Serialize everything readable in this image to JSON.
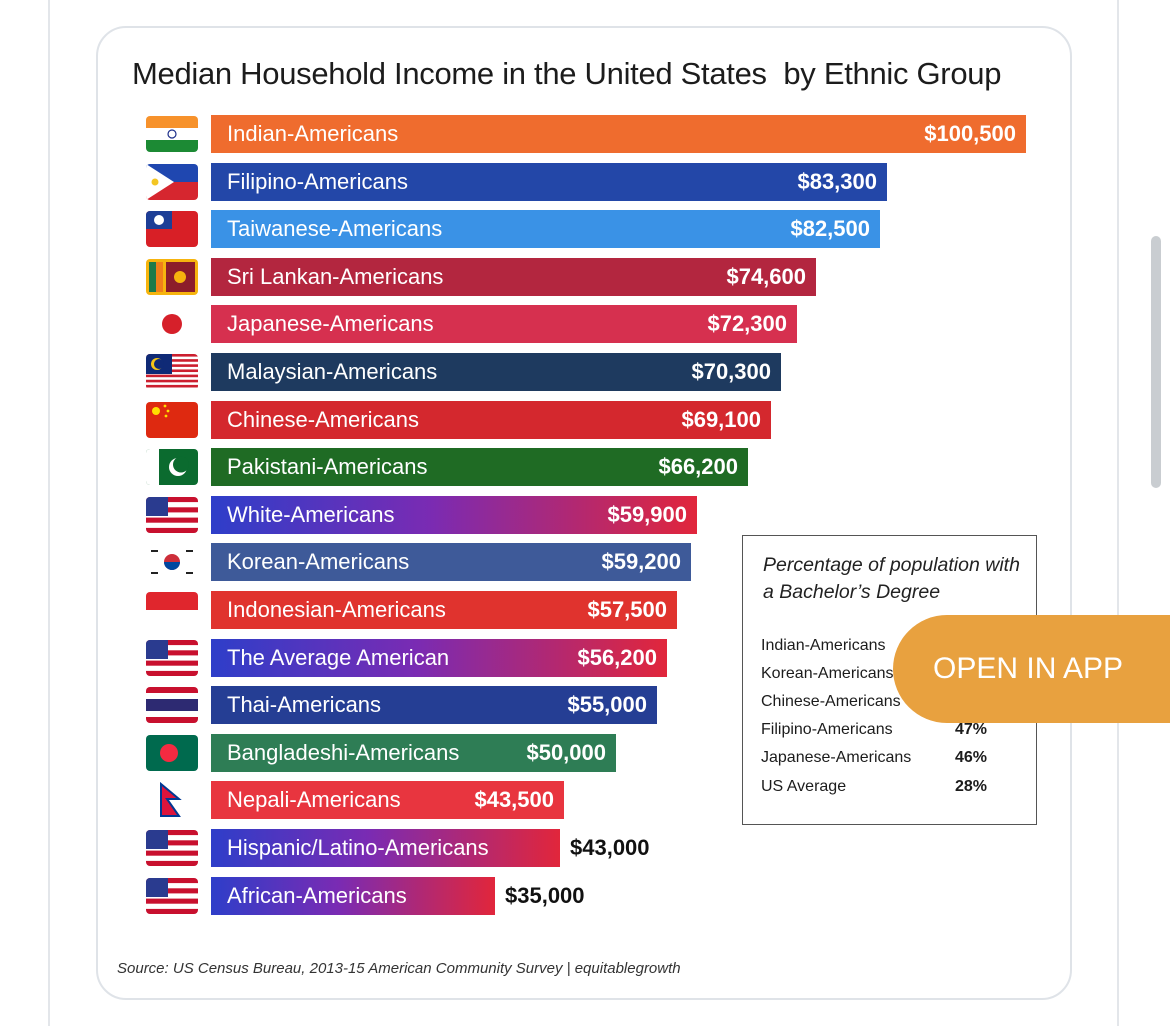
{
  "chart_data": {
    "type": "bar",
    "orientation": "horizontal",
    "title": "Median Household Income in the United States  by Ethnic Group",
    "categories": [
      "Indian-Americans",
      "Filipino-Americans",
      "Taiwanese-Americans",
      "Sri Lankan-Americans",
      "Japanese-Americans",
      "Malaysian-Americans",
      "Chinese-Americans",
      "Pakistani-Americans",
      "White-Americans",
      "Korean-Americans",
      "Indonesian-Americans",
      "The Average American",
      "Thai-Americans",
      "Bangladeshi-Americans",
      "Nepali-Americans",
      "Hispanic/Latino-Americans",
      "African-Americans"
    ],
    "values": [
      100500,
      83300,
      82500,
      74600,
      72300,
      70300,
      69100,
      66200,
      59900,
      59200,
      57500,
      56200,
      55000,
      50000,
      43500,
      43000,
      35000
    ],
    "value_labels": [
      "$100,500",
      "$83,300",
      "$82,500",
      "$74,600",
      "$72,300",
      "$70,300",
      "$69,100",
      "$66,200",
      "$59,900",
      "$59,200",
      "$57,500",
      "$56,200",
      "$55,000",
      "$50,000",
      "$43,500",
      "$43,000",
      "$35,000"
    ],
    "bar_colors": [
      "#ef6c2e",
      "#2347a8",
      "#3a92e6",
      "#b3263f",
      "#d6304f",
      "#1e3a5f",
      "#d4282e",
      "#1f6b24",
      "gradient-blue-red",
      "#3e5a99",
      "#e0332e",
      "gradient-blue-red",
      "#253e94",
      "#2e7d55",
      "#e8353f",
      "gradient-blue-red",
      "gradient-blue-red"
    ],
    "flag_icons": [
      "india-flag-icon",
      "philippines-flag-icon",
      "taiwan-flag-icon",
      "sri-lanka-flag-icon",
      "japan-flag-icon",
      "malaysia-flag-icon",
      "china-flag-icon",
      "pakistan-flag-icon",
      "usa-flag-icon",
      "south-korea-flag-icon",
      "indonesia-flag-icon",
      "usa-flag-icon",
      "thailand-flag-icon",
      "bangladesh-flag-icon",
      "nepal-flag-icon",
      "usa-flag-icon",
      "usa-flag-icon"
    ]
  },
  "inset": {
    "title": "Percentage of population with a Bachelor’s Degree",
    "rows": [
      {
        "name": "Indian-Americans",
        "pct": ""
      },
      {
        "name": "Korean-Americans",
        "pct": ""
      },
      {
        "name": "Chinese-Americans",
        "pct": ""
      },
      {
        "name": "Filipino-Americans",
        "pct": "47%"
      },
      {
        "name": "Japanese-Americans",
        "pct": "46%"
      },
      {
        "name": "US Average",
        "pct": "28%"
      }
    ]
  },
  "source": "Source: US Census Bureau, 2013-15 American Community Survey | equitablegrowth",
  "open_app_label": "OPEN IN APP"
}
